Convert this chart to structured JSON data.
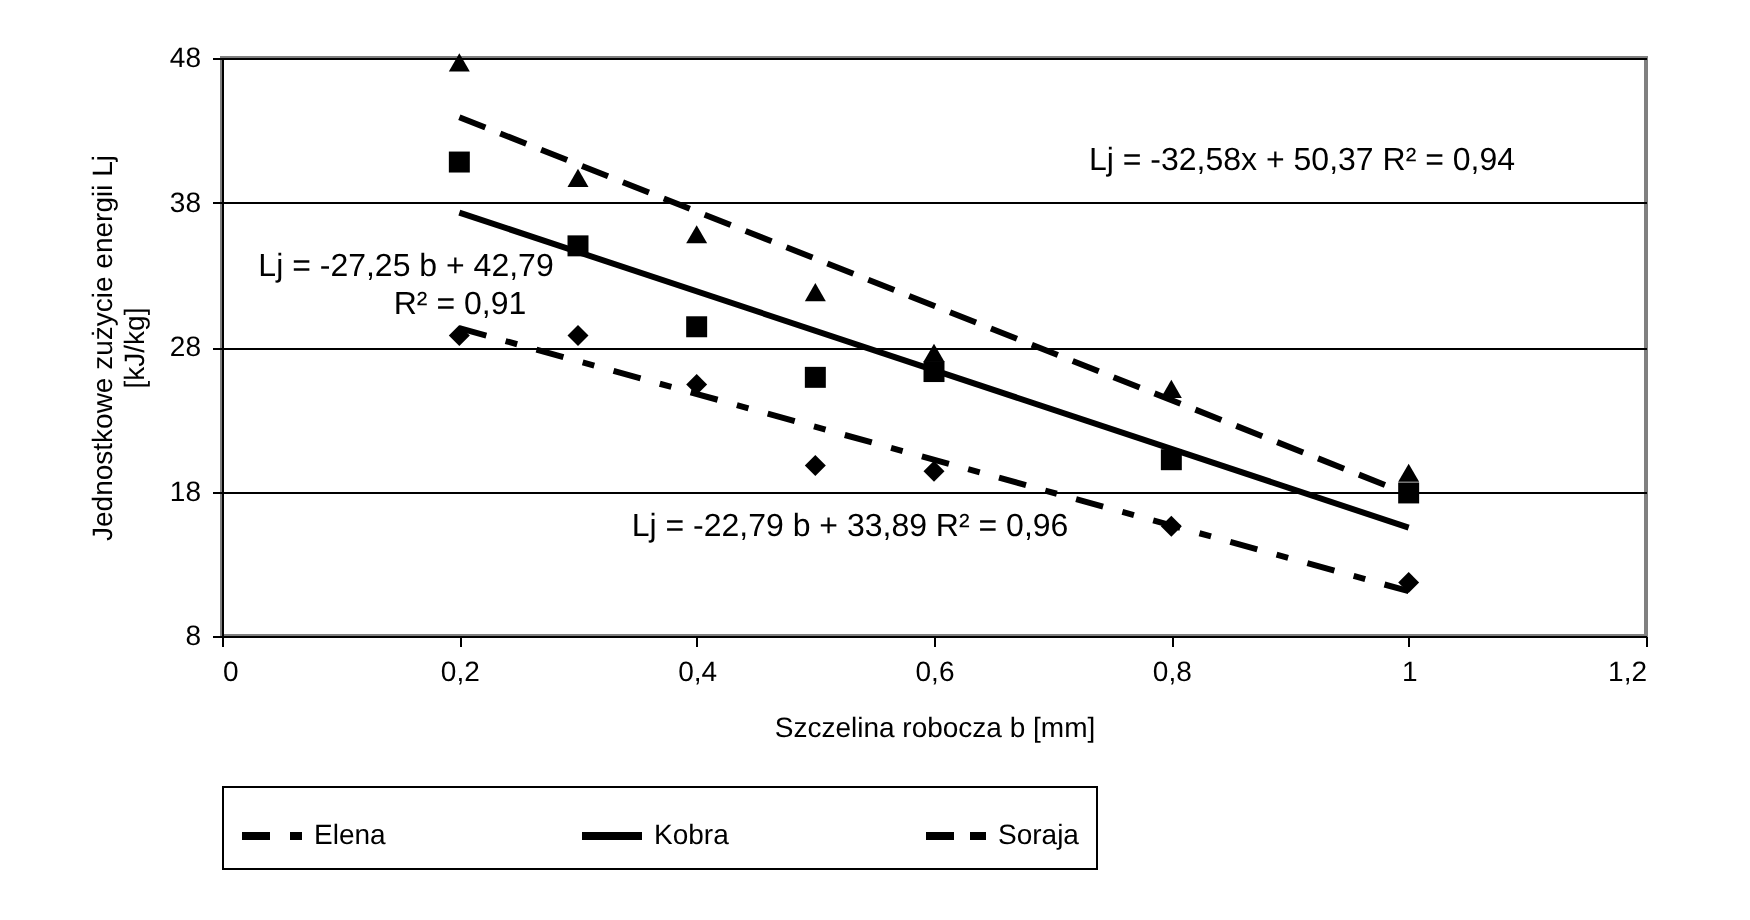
{
  "chart_data": {
    "type": "scatter",
    "xlabel": "Szczelina robocza b [mm]",
    "ylabel": "Jednostkowe zużycie energii Lj [kJ/kg]",
    "xlim": [
      0,
      1.2
    ],
    "xticks": [
      0,
      {
        "value": 0.2,
        "label": "0,2"
      },
      {
        "value": 0.4,
        "label": "0,4"
      },
      {
        "value": 0.6,
        "label": "0,6"
      },
      {
        "value": 0.8,
        "label": "0,8"
      },
      1,
      {
        "value": 1.2,
        "label": "1,2"
      }
    ],
    "ylim": [
      8,
      48
    ],
    "yticks": [
      8,
      18,
      28,
      38,
      48
    ],
    "grid": "y",
    "legend": "bottom",
    "series": [
      {
        "type": "scatter",
        "marker": "diamond",
        "color": "#000000",
        "x": [
          0.2,
          0.3,
          0.4,
          0.5,
          0.6,
          0.8,
          1.0
        ],
        "values": [
          28.8,
          28.8,
          25.4,
          19.8,
          19.4,
          15.6,
          11.7
        ]
      },
      {
        "type": "scatter",
        "marker": "square",
        "color": "#000000",
        "x": [
          0.2,
          0.3,
          0.4,
          0.5,
          0.6,
          0.8,
          1.0
        ],
        "values": [
          40.8,
          35.0,
          29.4,
          25.9,
          26.3,
          20.2,
          17.9
        ]
      },
      {
        "type": "scatter",
        "marker": "triangle",
        "color": "#000000",
        "x": [
          0.2,
          0.3,
          0.4,
          0.5,
          0.6,
          0.8,
          1.0
        ],
        "values": [
          47.7,
          39.7,
          35.8,
          31.8,
          27.6,
          25.1,
          19.3
        ]
      },
      {
        "type": "line",
        "name": "Elena",
        "color": "#000000",
        "line_style": "dashdot",
        "marker": "none",
        "x": [
          0.2,
          1.0
        ],
        "values": [
          29.3,
          11.1
        ]
      },
      {
        "type": "line",
        "name": "Kobra",
        "color": "#000000",
        "line_style": "solid",
        "marker": "none",
        "x": [
          0.2,
          1.0
        ],
        "values": [
          37.3,
          15.5
        ]
      },
      {
        "type": "line",
        "name": "Soraja",
        "color": "#000000",
        "line_style": "dashed",
        "marker": "none",
        "x": [
          0.2,
          1.0
        ],
        "values": [
          43.9,
          17.8
        ]
      }
    ],
    "annotations": [
      "Lj = -32,58x + 50,37  R² = 0,94",
      "Lj = -27,25 b + 42,79",
      "R² = 0,91",
      "Lj = -22,79 b + 33,89  R² = 0,96"
    ]
  }
}
